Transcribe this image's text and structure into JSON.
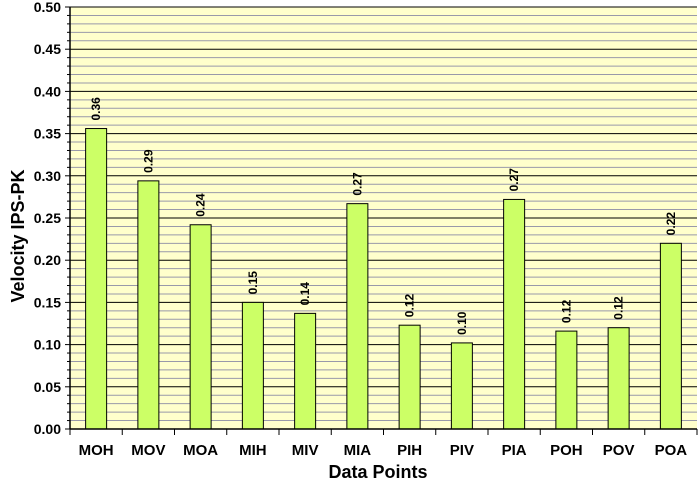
{
  "chart_data": {
    "type": "bar",
    "title": "",
    "xlabel": "Data Points",
    "ylabel": "Velocity IPS-PK",
    "categories": [
      "MOH",
      "MOV",
      "MOA",
      "MIH",
      "MIV",
      "MIA",
      "PIH",
      "PIV",
      "PIA",
      "POH",
      "POV",
      "POA"
    ],
    "values": [
      0.356,
      0.294,
      0.242,
      0.15,
      0.137,
      0.267,
      0.123,
      0.102,
      0.272,
      0.116,
      0.12,
      0.22
    ],
    "data_labels": [
      "0.36",
      "0.29",
      "0.24",
      "0.15",
      "0.14",
      "0.27",
      "0.12",
      "0.10",
      "0.27",
      "0.12",
      "0.12",
      "0.22"
    ],
    "ylim": [
      0,
      0.5
    ],
    "yticks": [
      "0.00",
      "0.05",
      "0.10",
      "0.15",
      "0.20",
      "0.25",
      "0.30",
      "0.35",
      "0.40",
      "0.45",
      "0.50"
    ],
    "grid": true,
    "legend": "none",
    "colors": {
      "plot_background": "#ffffcc",
      "bar_fill": "#ccff66",
      "bar_stroke": "#000000",
      "major_grid": "#000000",
      "minor_grid": "#9999aa"
    }
  }
}
